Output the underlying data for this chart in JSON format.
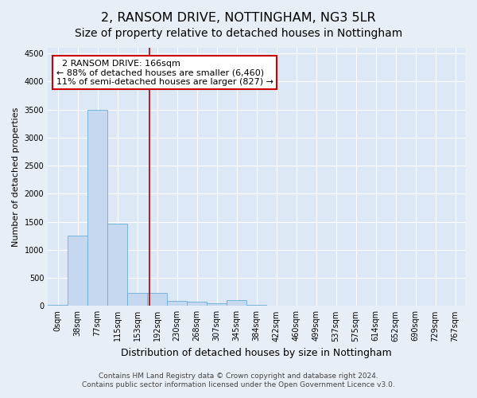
{
  "title": "2, RANSOM DRIVE, NOTTINGHAM, NG3 5LR",
  "subtitle": "Size of property relative to detached houses in Nottingham",
  "xlabel": "Distribution of detached houses by size in Nottingham",
  "ylabel": "Number of detached properties",
  "footer_line1": "Contains HM Land Registry data © Crown copyright and database right 2024.",
  "footer_line2": "Contains public sector information licensed under the Open Government Licence v3.0.",
  "bin_labels": [
    "0sqm",
    "38sqm",
    "77sqm",
    "115sqm",
    "153sqm",
    "192sqm",
    "230sqm",
    "268sqm",
    "307sqm",
    "345sqm",
    "384sqm",
    "422sqm",
    "460sqm",
    "499sqm",
    "537sqm",
    "575sqm",
    "614sqm",
    "652sqm",
    "690sqm",
    "729sqm",
    "767sqm"
  ],
  "bar_values": [
    15,
    1250,
    3500,
    1470,
    230,
    230,
    95,
    70,
    45,
    100,
    20,
    0,
    0,
    5,
    0,
    0,
    0,
    0,
    0,
    0,
    0
  ],
  "bar_color": "#c5d8ef",
  "bar_edge_color": "#6baed6",
  "vline_x_index": 4.62,
  "vline_color": "#aa0000",
  "annotation_text": "  2 RANSOM DRIVE: 166sqm\n← 88% of detached houses are smaller (6,460)\n11% of semi-detached houses are larger (827) →",
  "annotation_box_color": "#cc0000",
  "ylim": [
    0,
    4600
  ],
  "yticks": [
    0,
    500,
    1000,
    1500,
    2000,
    2500,
    3000,
    3500,
    4000,
    4500
  ],
  "background_color": "#e8eef5",
  "plot_background_color": "#dce8f5",
  "grid_color": "#ffffff",
  "title_fontsize": 11.5,
  "subtitle_fontsize": 10,
  "xlabel_fontsize": 9,
  "ylabel_fontsize": 8,
  "tick_fontsize": 7,
  "annotation_fontsize": 8,
  "footer_fontsize": 6.5
}
